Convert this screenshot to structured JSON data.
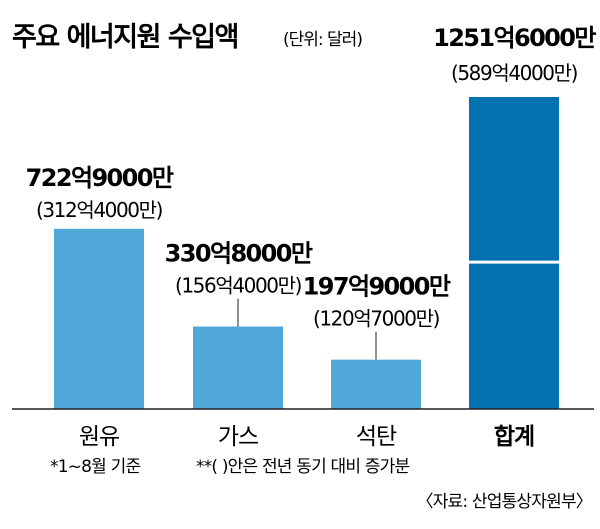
{
  "chart_data": {
    "type": "bar",
    "title": "주요 에너지원 수입액",
    "unit_label": "(단위: 달러)",
    "categories": [
      "원유",
      "가스",
      "석탄",
      "합계"
    ],
    "values": [
      722.9,
      330.8,
      197.9,
      1251.6
    ],
    "prev_year_values": [
      312.4,
      156.4,
      120.7,
      589.4
    ],
    "value_labels": [
      "722억9000만",
      "330억8000만",
      "197억9000만",
      "1251억6000만"
    ],
    "prev_labels": [
      "(312억4000만)",
      "(156억4000만)",
      "(120억7000만)",
      "(589억4000만)"
    ],
    "ylim": [
      0,
      1251.6
    ],
    "grid": false,
    "colors": {
      "bar": "#4fa8d8",
      "total": "#0271b1",
      "text": "#231f20"
    }
  },
  "notes": {
    "period": "*1~8월 기준",
    "comparison": "**(  )안은 전년 동기 대비 증가분",
    "source": "〈자료: 산업통상자원부〉"
  }
}
